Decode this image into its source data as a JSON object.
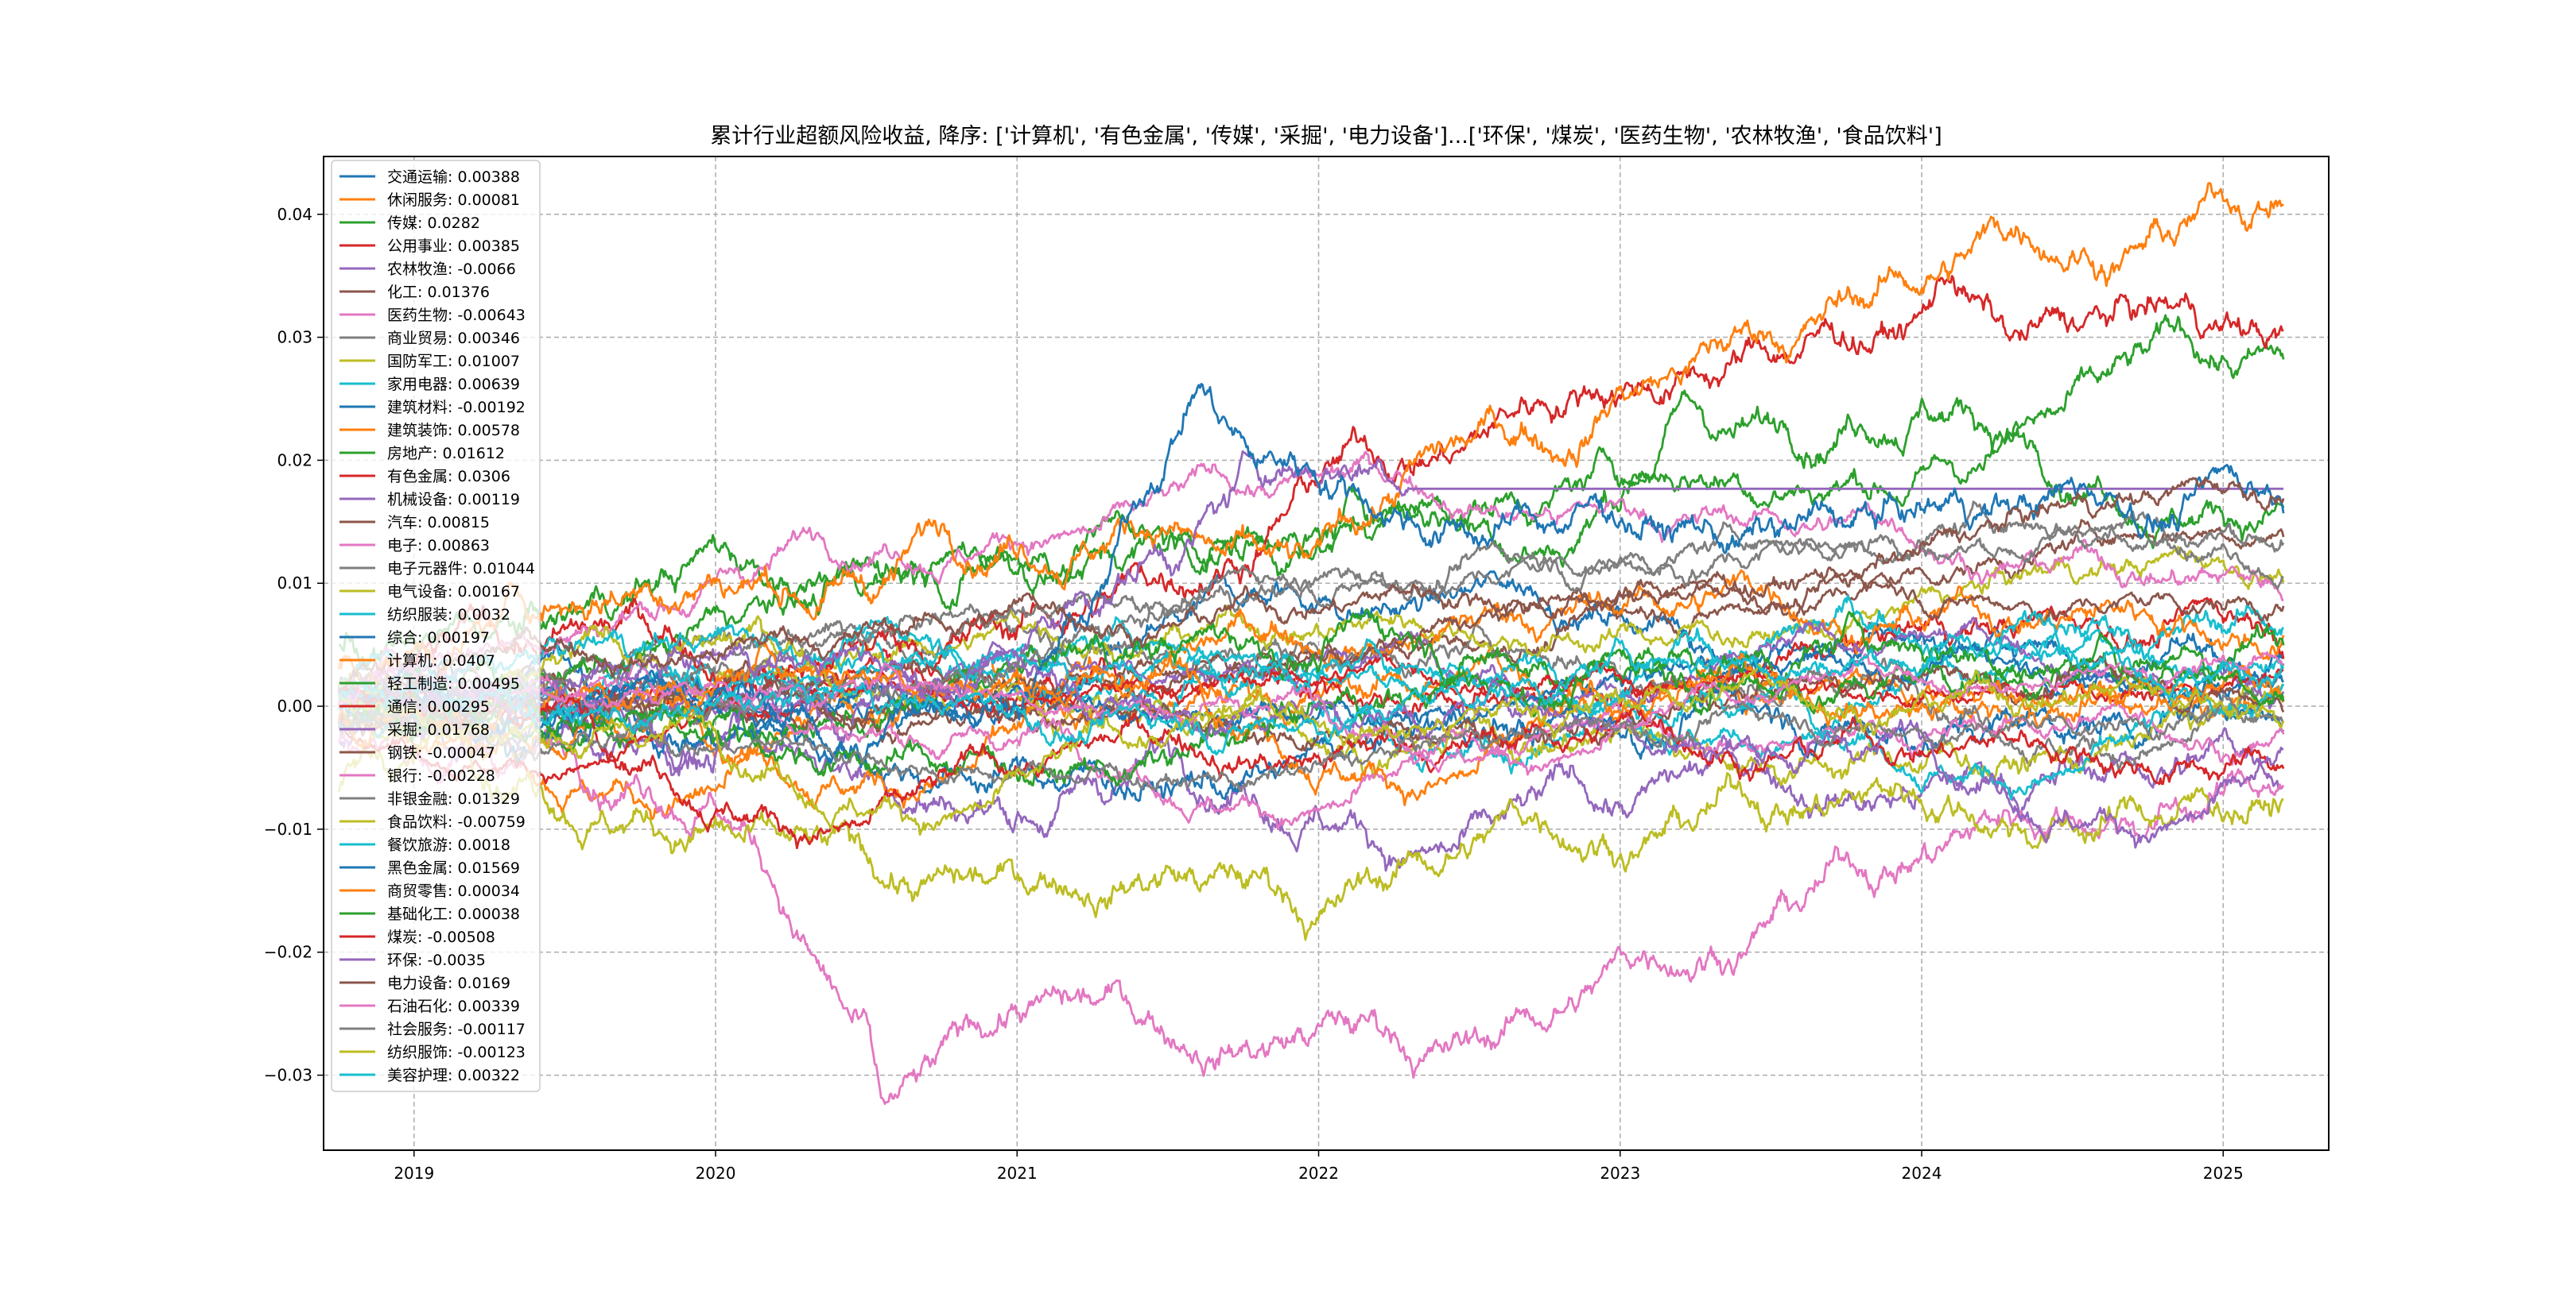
{
  "chart_data": {
    "type": "line",
    "title": "累计行业超额风险收益, 降序: ['计算机', '有色金属', '传媒', '采掘', '电力设备']...['环保', '煤炭', '医药生物', '农林牧渔', '食品饮料']",
    "xlabel": "",
    "ylabel": "",
    "xlim": [
      2018.7,
      2025.35
    ],
    "ylim": [
      -0.0361,
      0.0447
    ],
    "x_ticks": [
      "2019",
      "2020",
      "2021",
      "2022",
      "2023",
      "2024",
      "2025"
    ],
    "y_ticks": [
      "−0.03",
      "−0.02",
      "−0.01",
      "0.00",
      "0.01",
      "0.02",
      "0.03",
      "0.04"
    ],
    "y_tick_values": [
      -0.03,
      -0.02,
      -0.01,
      0,
      0.01,
      0.02,
      0.03,
      0.04
    ],
    "grid": true,
    "legend_position": "upper-left",
    "x_range": [
      2018.75,
      2025.2
    ],
    "series": [
      {
        "name": "交通运输",
        "label": "交通运输: 0.00388",
        "final": 0.00388,
        "color": "#1f77b4"
      },
      {
        "name": "休闲服务",
        "label": "休闲服务: 0.00081",
        "final": 0.00081,
        "color": "#ff7f0e"
      },
      {
        "name": "传媒",
        "label": "传媒: 0.0282",
        "final": 0.0282,
        "color": "#2ca02c",
        "keypoints": [
          [
            2018.75,
            0.005
          ],
          [
            2019.5,
            0.007
          ],
          [
            2020,
            0.013
          ],
          [
            2020.5,
            0.012
          ],
          [
            2021,
            0.012
          ],
          [
            2022,
            0.014
          ],
          [
            2022.3,
            0.016
          ],
          [
            2022.8,
            0.012
          ],
          [
            2023,
            0.016
          ],
          [
            2023.2,
            0.025
          ],
          [
            2023.5,
            0.023
          ],
          [
            2024,
            0.025
          ],
          [
            2024.5,
            0.026
          ],
          [
            2024.9,
            0.029
          ],
          [
            2025.2,
            0.0282
          ]
        ]
      },
      {
        "name": "公用事业",
        "label": "公用事业: 0.00385",
        "final": 0.00385,
        "color": "#d62728"
      },
      {
        "name": "农林牧渔",
        "label": "农林牧渔: -0.0066",
        "final": -0.0066,
        "color": "#9467bd",
        "keypoints": [
          [
            2018.75,
            -0.003
          ],
          [
            2021,
            -0.009
          ],
          [
            2022,
            -0.009
          ],
          [
            2023,
            -0.008
          ],
          [
            2024,
            -0.007
          ],
          [
            2025.2,
            -0.0066
          ]
        ]
      },
      {
        "name": "化工",
        "label": "化工: 0.01376",
        "final": 0.01376,
        "color": "#8c564b"
      },
      {
        "name": "医药生物",
        "label": "医药生物: -0.00643",
        "final": -0.00643,
        "color": "#e377c2",
        "keypoints": [
          [
            2018.75,
            -0.003
          ],
          [
            2019.5,
            -0.004
          ],
          [
            2020,
            -0.008
          ],
          [
            2020.2,
            -0.015
          ],
          [
            2020.5,
            -0.025
          ],
          [
            2020.55,
            -0.032
          ],
          [
            2020.8,
            -0.026
          ],
          [
            2021,
            -0.025
          ],
          [
            2021.5,
            -0.027
          ],
          [
            2022,
            -0.026
          ],
          [
            2022.5,
            -0.027
          ],
          [
            2023,
            -0.02
          ],
          [
            2023.5,
            -0.017
          ],
          [
            2024,
            -0.012
          ],
          [
            2024.5,
            -0.009
          ],
          [
            2025.2,
            -0.00643
          ]
        ]
      },
      {
        "name": "商业贸易",
        "label": "商业贸易: 0.00346",
        "final": 0.00346,
        "color": "#7f7f7f"
      },
      {
        "name": "国防军工",
        "label": "国防军工: 0.01007",
        "final": 0.01007,
        "color": "#bcbd22"
      },
      {
        "name": "家用电器",
        "label": "家用电器: 0.00639",
        "final": 0.00639,
        "color": "#17becf"
      },
      {
        "name": "建筑材料",
        "label": "建筑材料: -0.00192",
        "final": -0.00192,
        "color": "#1f77b4"
      },
      {
        "name": "建筑装饰",
        "label": "建筑装饰: 0.00578",
        "final": 0.00578,
        "color": "#ff7f0e"
      },
      {
        "name": "房地产",
        "label": "房地产: 0.01612",
        "final": 0.01612,
        "color": "#2ca02c"
      },
      {
        "name": "有色金属",
        "label": "有色金属: 0.0306",
        "final": 0.0306,
        "color": "#d62728",
        "keypoints": [
          [
            2018.75,
            0
          ],
          [
            2020,
            0.002
          ],
          [
            2021,
            0.006
          ],
          [
            2021.5,
            0.01
          ],
          [
            2022,
            0.018
          ],
          [
            2022.5,
            0.022
          ],
          [
            2023,
            0.025
          ],
          [
            2023.5,
            0.028
          ],
          [
            2024,
            0.032
          ],
          [
            2024.1,
            0.035
          ],
          [
            2024.3,
            0.03
          ],
          [
            2024.8,
            0.033
          ],
          [
            2025.2,
            0.0306
          ]
        ]
      },
      {
        "name": "机械设备",
        "label": "机械设备: 0.00119",
        "final": 0.00119,
        "color": "#9467bd"
      },
      {
        "name": "汽车",
        "label": "汽车: 0.00815",
        "final": 0.00815,
        "color": "#8c564b"
      },
      {
        "name": "电子",
        "label": "电子: 0.00863",
        "final": 0.00863,
        "color": "#e377c2"
      },
      {
        "name": "电子元器件",
        "label": "电子元器件: 0.01044",
        "final": 0.01044,
        "color": "#7f7f7f"
      },
      {
        "name": "电气设备",
        "label": "电气设备: 0.00167",
        "final": 0.00167,
        "color": "#bcbd22"
      },
      {
        "name": "纺织服装",
        "label": "纺织服装: 0.0032",
        "final": 0.0032,
        "color": "#17becf"
      },
      {
        "name": "综合",
        "label": "综合: 0.00197",
        "final": 0.00197,
        "color": "#1f77b4"
      },
      {
        "name": "计算机",
        "label": "计算机: 0.0407",
        "final": 0.0407,
        "color": "#ff7f0e",
        "keypoints": [
          [
            2018.75,
            0.003
          ],
          [
            2019.5,
            0.008
          ],
          [
            2020,
            0.01
          ],
          [
            2020.5,
            0.009
          ],
          [
            2021,
            0.012
          ],
          [
            2021.5,
            0.014
          ],
          [
            2022,
            0.013
          ],
          [
            2022.3,
            0.02
          ],
          [
            2022.8,
            0.02
          ],
          [
            2023,
            0.026
          ],
          [
            2023.5,
            0.03
          ],
          [
            2024,
            0.034
          ],
          [
            2024.5,
            0.037
          ],
          [
            2024.9,
            0.04
          ],
          [
            2025.2,
            0.0407
          ]
        ]
      },
      {
        "name": "轻工制造",
        "label": "轻工制造: 0.00495",
        "final": 0.00495,
        "color": "#2ca02c"
      },
      {
        "name": "通信",
        "label": "通信: 0.00295",
        "final": 0.00295,
        "color": "#d62728"
      },
      {
        "name": "采掘",
        "label": "采掘: 0.01768",
        "final": 0.01768,
        "color": "#9467bd",
        "flat_after": 2022.3,
        "keypoints": [
          [
            2018.75,
            0
          ],
          [
            2020,
            -0.004
          ],
          [
            2021,
            0.003
          ],
          [
            2021.8,
            0.019
          ],
          [
            2022.3,
            0.01768
          ],
          [
            2025.2,
            0.01768
          ]
        ]
      },
      {
        "name": "钢铁",
        "label": "钢铁: -0.00047",
        "final": -0.00047,
        "color": "#8c564b"
      },
      {
        "name": "银行",
        "label": "银行: -0.00228",
        "final": -0.00228,
        "color": "#e377c2"
      },
      {
        "name": "非银金融",
        "label": "非银金融: 0.01329",
        "final": 0.01329,
        "color": "#7f7f7f"
      },
      {
        "name": "食品饮料",
        "label": "食品饮料: -0.00759",
        "final": -0.00759,
        "color": "#bcbd22",
        "keypoints": [
          [
            2018.75,
            -0.007
          ],
          [
            2019.5,
            -0.009
          ],
          [
            2020,
            -0.009
          ],
          [
            2020.5,
            -0.012
          ],
          [
            2021,
            -0.014
          ],
          [
            2021.5,
            -0.013
          ],
          [
            2022,
            -0.017
          ],
          [
            2022.5,
            -0.012
          ],
          [
            2023,
            -0.012
          ],
          [
            2023.5,
            -0.009
          ],
          [
            2024,
            -0.008
          ],
          [
            2024.5,
            -0.01
          ],
          [
            2025.2,
            -0.00759
          ]
        ]
      },
      {
        "name": "餐饮旅游",
        "label": "餐饮旅游: 0.0018",
        "final": 0.0018,
        "color": "#17becf"
      },
      {
        "name": "黑色金属",
        "label": "黑色金属: 0.01569",
        "final": 0.01569,
        "color": "#1f77b4",
        "keypoints": [
          [
            2018.75,
            0
          ],
          [
            2020,
            0.001
          ],
          [
            2020.5,
            -0.004
          ],
          [
            2021,
            0
          ],
          [
            2021.3,
            0.01
          ],
          [
            2021.6,
            0.026
          ],
          [
            2021.8,
            0.02
          ],
          [
            2022,
            0.018
          ],
          [
            2022.5,
            0.014
          ],
          [
            2023,
            0.015
          ],
          [
            2024,
            0.016
          ],
          [
            2025.2,
            0.01569
          ]
        ]
      },
      {
        "name": "商贸零售",
        "label": "商贸零售: 0.00034",
        "final": 0.00034,
        "color": "#ff7f0e"
      },
      {
        "name": "基础化工",
        "label": "基础化工: 0.00038",
        "final": 0.00038,
        "color": "#2ca02c"
      },
      {
        "name": "煤炭",
        "label": "煤炭: -0.00508",
        "final": -0.00508,
        "color": "#d62728"
      },
      {
        "name": "环保",
        "label": "环保: -0.0035",
        "final": -0.0035,
        "color": "#9467bd"
      },
      {
        "name": "电力设备",
        "label": "电力设备: 0.0169",
        "final": 0.0169,
        "color": "#8c564b"
      },
      {
        "name": "石油石化",
        "label": "石油石化: 0.00339",
        "final": 0.00339,
        "color": "#e377c2"
      },
      {
        "name": "社会服务",
        "label": "社会服务: -0.00117",
        "final": -0.00117,
        "color": "#7f7f7f"
      },
      {
        "name": "纺织服饰",
        "label": "纺织服饰: -0.00123",
        "final": -0.00123,
        "color": "#bcbd22"
      },
      {
        "name": "美容护理",
        "label": "美容护理: 0.00322",
        "final": 0.00322,
        "color": "#17becf"
      }
    ]
  }
}
